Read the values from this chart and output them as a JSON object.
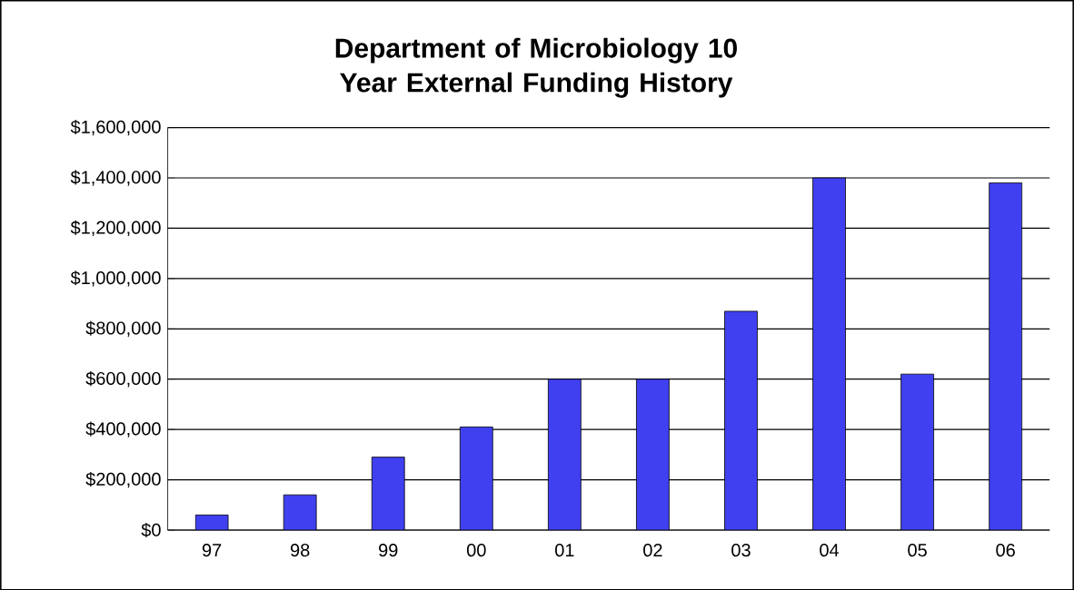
{
  "chart_data": {
    "type": "bar",
    "title": "Department of Microbiology 10 Year External Funding History",
    "categories": [
      "97",
      "98",
      "99",
      "00",
      "01",
      "02",
      "03",
      "04",
      "05",
      "06"
    ],
    "values": [
      60000,
      140000,
      290000,
      410000,
      600000,
      600000,
      870000,
      1400000,
      620000,
      1380000
    ],
    "color": "#4040f0",
    "ylim": [
      0,
      1600000
    ],
    "yticks": [
      {
        "value": 0,
        "label": "$0"
      },
      {
        "value": 200000,
        "label": "$200,000"
      },
      {
        "value": 400000,
        "label": "$400,000"
      },
      {
        "value": 600000,
        "label": "$600,000"
      },
      {
        "value": 800000,
        "label": "$800,000"
      },
      {
        "value": 1000000,
        "label": "$1,000,000"
      },
      {
        "value": 1200000,
        "label": "$1,200,000"
      },
      {
        "value": 1400000,
        "label": "$1,400,000"
      },
      {
        "value": 1600000,
        "label": "$1,600,000"
      }
    ],
    "grid": "y"
  }
}
